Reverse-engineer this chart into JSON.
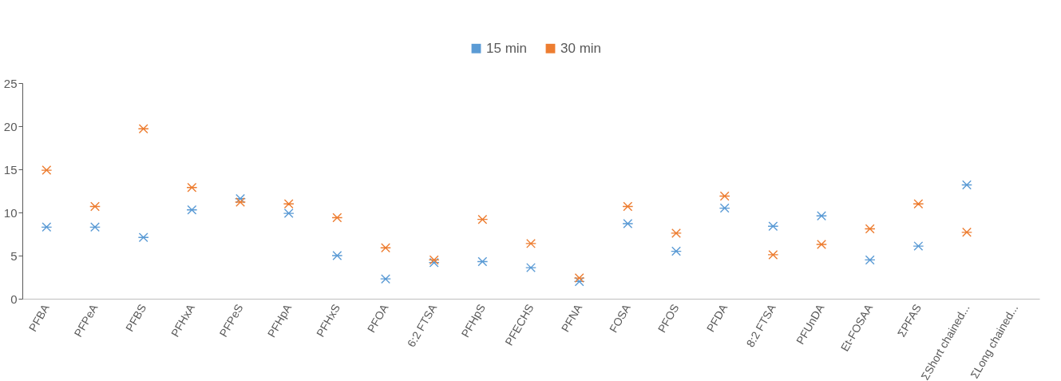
{
  "chart_data": {
    "type": "scatter",
    "categories": [
      "PFBA",
      "PFPeA",
      "PFBS",
      "PFHxA",
      "PFPeS",
      "PFHpA",
      "PFHxS",
      "PFOA",
      "6:2 FTSA",
      "PFHpS",
      "PFECHS",
      "PFNA",
      "FOSA",
      "PFOS",
      "PFDA",
      "8:2 FTSA",
      "PFUnDA",
      "Et-FOSAA",
      "ΣPFAS",
      "ΣShort chained...",
      "ΣLong chained..."
    ],
    "series": [
      {
        "name": "15 min",
        "color": "#5b9bd5",
        "values": [
          8.3,
          8.3,
          7.1,
          10.3,
          11.6,
          9.9,
          5.0,
          2.3,
          4.2,
          4.3,
          3.6,
          2.0,
          8.7,
          5.5,
          10.5,
          8.4,
          9.6,
          4.5,
          6.1,
          13.2,
          null
        ]
      },
      {
        "name": "30 min",
        "color": "#ed7d31",
        "values": [
          14.9,
          10.7,
          19.7,
          12.9,
          11.2,
          11.0,
          9.4,
          5.9,
          4.5,
          9.2,
          6.4,
          2.4,
          10.7,
          7.6,
          11.9,
          5.1,
          6.3,
          8.1,
          11.0,
          7.7,
          null
        ]
      }
    ],
    "ylim": [
      0,
      25
    ],
    "yticks": [
      0,
      5,
      10,
      15,
      20,
      25
    ],
    "grid": false,
    "legend": "top",
    "marker": "cross"
  }
}
